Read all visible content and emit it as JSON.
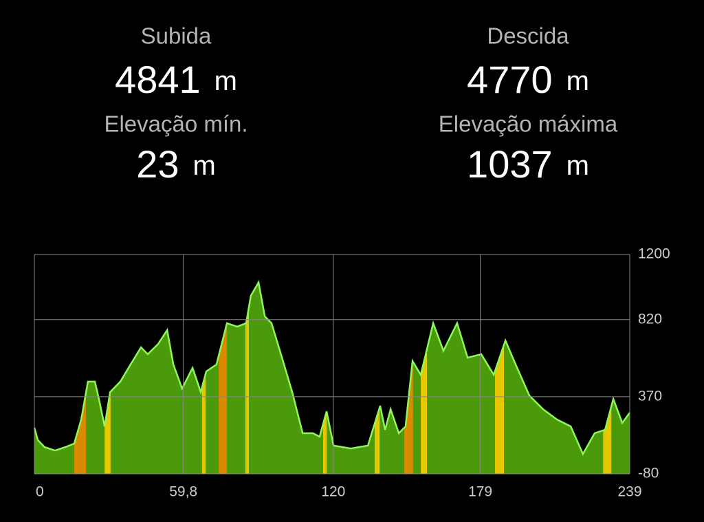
{
  "stats": [
    {
      "label": "Subida",
      "value": "4841",
      "unit": "m"
    },
    {
      "label": "Descida",
      "value": "4770",
      "unit": "m"
    },
    {
      "label": "Elevação mín.",
      "value": "23",
      "unit": "m"
    },
    {
      "label": "Elevação máxima",
      "value": "1037",
      "unit": "m"
    }
  ],
  "chart_data": {
    "type": "area",
    "x": [
      0,
      1.4,
      4.1,
      8.3,
      12.4,
      16,
      18.8,
      21.5,
      24.3,
      26.2,
      28.2,
      30.4,
      34.5,
      38.6,
      42.8,
      45.5,
      49.7,
      53.3,
      55.8,
      59.3,
      63.5,
      66.8,
      69,
      73.1,
      77.3,
      81.4,
      85,
      86.9,
      90,
      92.5,
      95.2,
      99.4,
      103.5,
      107.7,
      111.8,
      114.5,
      117.3,
      120.1,
      127,
      133.9,
      138.8,
      140.8,
      143,
      146.3,
      149,
      151.8,
      155.1,
      160.1,
      164.2,
      169.7,
      173.9,
      179.4,
      184.4,
      189.1,
      193.2,
      198.7,
      204.2,
      209.8,
      215.3,
      220.2,
      224.9,
      229.1,
      232.4,
      236,
      239
    ],
    "series": [
      {
        "color": "#4b9a0b",
        "line_color": "#8ef55c",
        "values": [
          189,
          117,
          76,
          56,
          76,
          97,
          237,
          458,
          458,
          337,
          197,
          397,
          458,
          558,
          658,
          618,
          678,
          759,
          558,
          418,
          538,
          397,
          518,
          558,
          799,
          779,
          799,
          959,
          1037,
          839,
          799,
          598,
          397,
          157,
          157,
          137,
          285,
          85,
          68,
          85,
          317,
          177,
          297,
          157,
          197,
          578,
          498,
          799,
          638,
          799,
          598,
          618,
          498,
          698,
          558,
          377,
          297,
          237,
          197,
          36,
          157,
          177,
          357,
          217,
          277
        ]
      }
    ],
    "highlights": [
      {
        "x": [
          16,
          20.7
        ],
        "color": "#d98a00"
      },
      {
        "x": [
          28.2,
          30.6
        ],
        "color": "#e6c800"
      },
      {
        "x": [
          67.3,
          68.7
        ],
        "color": "#e6c800"
      },
      {
        "x": [
          74,
          77.3
        ],
        "color": "#d98a00"
      },
      {
        "x": [
          84.7,
          86.1
        ],
        "color": "#e6c800"
      },
      {
        "x": [
          115.9,
          117.3
        ],
        "color": "#e6c800"
      },
      {
        "x": [
          136.6,
          138.6
        ],
        "color": "#e6c800"
      },
      {
        "x": [
          148.5,
          152
        ],
        "color": "#d98a00"
      },
      {
        "x": [
          155.1,
          157.6
        ],
        "color": "#e6c800"
      },
      {
        "x": [
          184.9,
          188.5
        ],
        "color": "#e6c800"
      },
      {
        "x": [
          228.3,
          231.6
        ],
        "color": "#e6c800"
      }
    ],
    "xlim": [
      0,
      239
    ],
    "xticks": [
      0,
      {
        "value": 59.8,
        "label": "59,8"
      },
      120,
      179,
      239
    ],
    "ylim": [
      -80,
      1200
    ],
    "yticks": [
      -80,
      370,
      820,
      1200
    ],
    "grid": true
  }
}
